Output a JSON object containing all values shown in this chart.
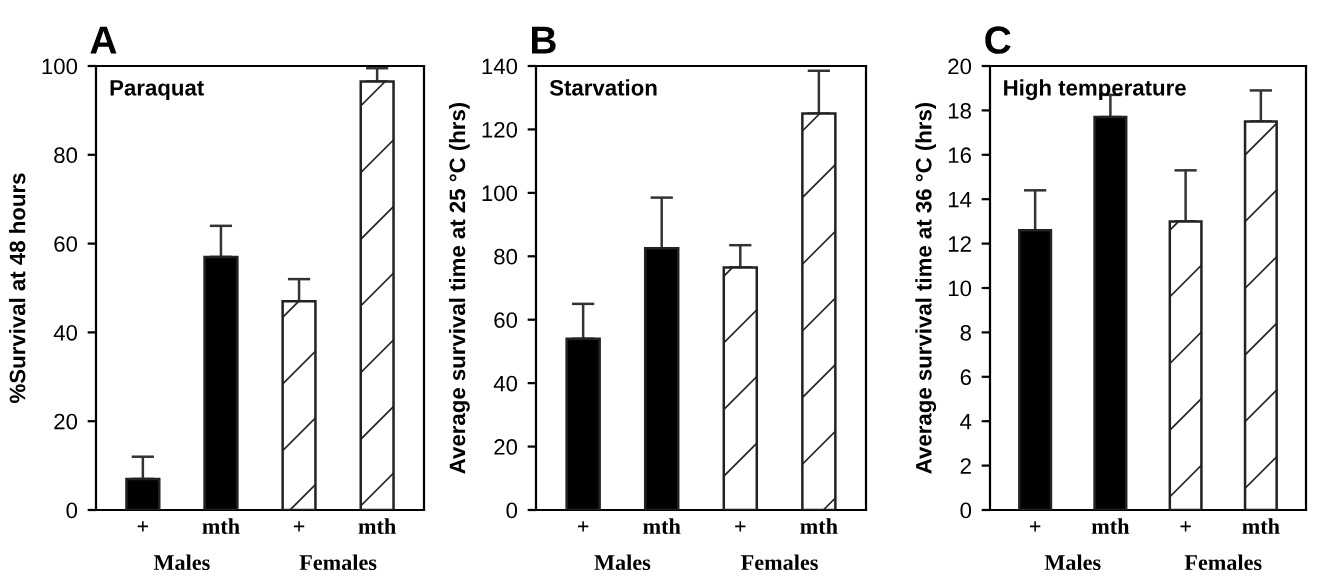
{
  "chart_data": [
    {
      "type": "bar",
      "title": "A",
      "subtitle": "Paraquat",
      "ylabel": "%Survival at 48 hours",
      "categories": [
        "+",
        "mth",
        "+",
        "mth"
      ],
      "values": [
        7,
        57,
        47,
        96.5
      ],
      "colors": [
        "#000000",
        "#000000",
        "#ffffff",
        "#ffffff"
      ],
      "errors": [
        [
          7,
          12
        ],
        [
          57,
          64
        ],
        [
          47,
          52
        ],
        [
          96.5,
          99.5
        ]
      ],
      "ylim": [
        0,
        100
      ],
      "yticks": [
        0,
        20,
        40,
        60,
        80,
        100
      ],
      "annotations": [
        "Males",
        "Females"
      ],
      "grid": false,
      "legend": false
    },
    {
      "type": "bar",
      "title": "B",
      "subtitle": "Starvation",
      "ylabel": "Average survival time at 25 °C (hrs)",
      "categories": [
        "+",
        "mth",
        "+",
        "mth"
      ],
      "values": [
        54,
        82.5,
        76.5,
        125
      ],
      "colors": [
        "#000000",
        "#000000",
        "#ffffff",
        "#ffffff"
      ],
      "errors": [
        [
          54,
          65
        ],
        [
          82.5,
          98.5
        ],
        [
          76.5,
          83.5
        ],
        [
          125,
          138.5
        ]
      ],
      "ylim": [
        0,
        140
      ],
      "yticks": [
        0,
        20,
        40,
        60,
        80,
        100,
        120,
        140
      ],
      "annotations": [
        "Males",
        "Females"
      ],
      "grid": false,
      "legend": false
    },
    {
      "type": "bar",
      "title": "C",
      "subtitle": "High temperature",
      "ylabel": "Average survival time at 36 °C (hrs)",
      "categories": [
        "+",
        "mth",
        "+",
        "mth"
      ],
      "values": [
        12.6,
        17.7,
        13,
        17.5
      ],
      "colors": [
        "#000000",
        "#000000",
        "#ffffff",
        "#ffffff"
      ],
      "errors": [
        [
          12.6,
          14.4
        ],
        [
          17.7,
          18.7
        ],
        [
          13,
          15.3
        ],
        [
          17.5,
          18.9
        ]
      ],
      "ylim": [
        0,
        20
      ],
      "yticks": [
        0,
        2,
        4,
        6,
        8,
        10,
        12,
        14,
        16,
        18,
        20
      ],
      "annotations": [
        "Males",
        "Females"
      ],
      "grid": false,
      "legend": false
    }
  ]
}
